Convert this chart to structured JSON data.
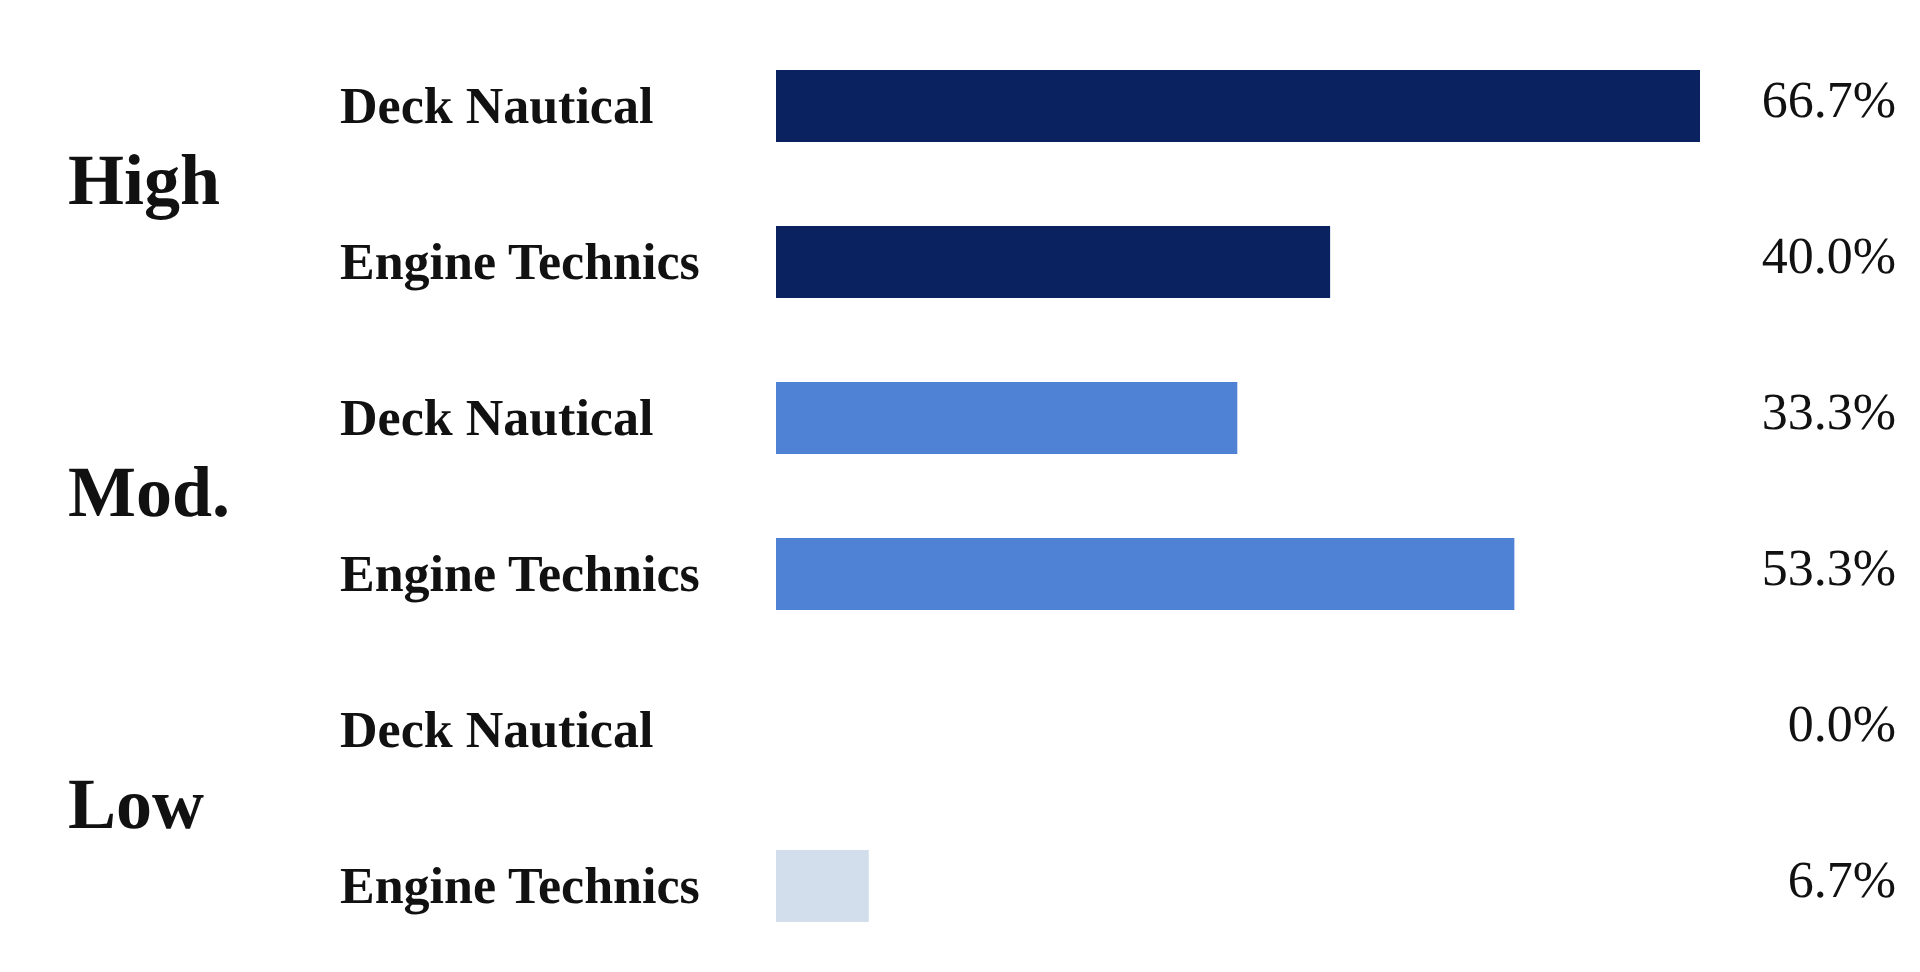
{
  "chart_data": {
    "type": "bar",
    "orientation": "horizontal",
    "categories": [
      "Deck Nautical",
      "Engine Technics",
      "Deck Nautical",
      "Engine Technics",
      "Deck Nautical",
      "Engine Technics"
    ],
    "values": [
      66.7,
      40.0,
      33.3,
      53.3,
      0.0,
      6.7
    ],
    "colors": [
      "#0b2260",
      "#0b2260",
      "#4f82d4",
      "#4f82d4",
      "#d3deec",
      "#d3deec"
    ],
    "value_labels": [
      "66.7%",
      "40.0%",
      "33.3%",
      "53.3%",
      "0.0%",
      "6.7%"
    ],
    "annotations": [
      "High",
      "Mod.",
      "Low"
    ]
  }
}
